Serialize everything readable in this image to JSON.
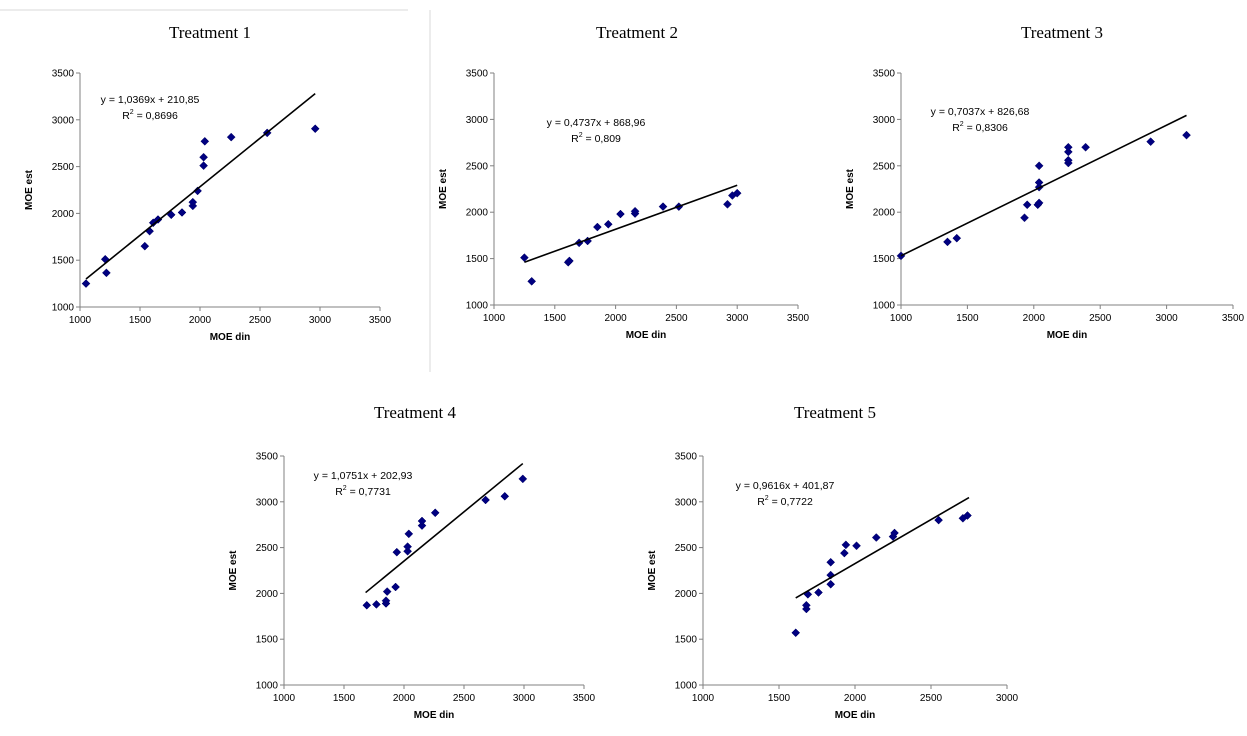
{
  "chart_data": [
    {
      "type": "scatter",
      "title": "Treatment 1",
      "xlabel": "MOE din",
      "ylabel": "MOE est",
      "xlim": [
        1000,
        3500
      ],
      "ylim": [
        1000,
        3500
      ],
      "xticks": [
        "1000",
        "1500",
        "2000",
        "2500",
        "3000",
        "3500"
      ],
      "yticks": [
        "1000",
        "1500",
        "2000",
        "2500",
        "3000",
        "3500"
      ],
      "equation": "y = 1,0369x + 210,85",
      "r2_label": "R",
      "r2_sup": "2",
      "r2_value": " = 0,8696",
      "trendline": {
        "slope": 1.0369,
        "intercept": 210.85,
        "x_range": [
          1050,
          2960
        ]
      },
      "points": [
        [
          1050,
          1250
        ],
        [
          1210,
          1510
        ],
        [
          1220,
          1365
        ],
        [
          1540,
          1650
        ],
        [
          1580,
          1810
        ],
        [
          1610,
          1900
        ],
        [
          1650,
          1935
        ],
        [
          1760,
          1985
        ],
        [
          1850,
          2010
        ],
        [
          1940,
          2080
        ],
        [
          1940,
          2120
        ],
        [
          1980,
          2240
        ],
        [
          2030,
          2510
        ],
        [
          2030,
          2600
        ],
        [
          2040,
          2770
        ],
        [
          2260,
          2815
        ],
        [
          2560,
          2860
        ],
        [
          2960,
          2905
        ]
      ],
      "grid": false
    },
    {
      "type": "scatter",
      "title": "Treatment 2",
      "xlabel": "MOE din",
      "ylabel": "MOE est",
      "xlim": [
        1000,
        3500
      ],
      "ylim": [
        1000,
        3500
      ],
      "xticks": [
        "1000",
        "1500",
        "2000",
        "2500",
        "3000",
        "3500"
      ],
      "yticks": [
        "1000",
        "1500",
        "2000",
        "2500",
        "3000",
        "3500"
      ],
      "equation": "y = 0,4737x + 868,96",
      "r2_label": "R",
      "r2_sup": "2",
      "r2_value": " = 0,809",
      "trendline": {
        "slope": 0.4737,
        "intercept": 868.96,
        "x_range": [
          1250,
          3000
        ]
      },
      "points": [
        [
          1250,
          1510
        ],
        [
          1310,
          1255
        ],
        [
          1610,
          1460
        ],
        [
          1620,
          1475
        ],
        [
          1700,
          1670
        ],
        [
          1770,
          1690
        ],
        [
          1850,
          1840
        ],
        [
          1940,
          1870
        ],
        [
          2040,
          1980
        ],
        [
          2160,
          1985
        ],
        [
          2160,
          2010
        ],
        [
          2390,
          2060
        ],
        [
          2520,
          2060
        ],
        [
          2920,
          2085
        ],
        [
          2960,
          2180
        ],
        [
          3000,
          2205
        ]
      ],
      "grid": false
    },
    {
      "type": "scatter",
      "title": "Treatment 3",
      "xlabel": "MOE din",
      "ylabel": "MOE est",
      "xlim": [
        1000,
        3500
      ],
      "ylim": [
        1000,
        3500
      ],
      "xticks": [
        "1000",
        "1500",
        "2000",
        "2500",
        "3000",
        "3500"
      ],
      "yticks": [
        "1000",
        "1500",
        "2000",
        "2500",
        "3000",
        "3500"
      ],
      "equation": "y = 0,7037x + 826,68",
      "r2_label": "R",
      "r2_sup": "2",
      "r2_value": " = 0,8306",
      "trendline": {
        "slope": 0.7037,
        "intercept": 826.68,
        "x_range": [
          1000,
          3150
        ]
      },
      "points": [
        [
          1000,
          1530
        ],
        [
          1350,
          1680
        ],
        [
          1420,
          1720
        ],
        [
          1930,
          1940
        ],
        [
          1950,
          2080
        ],
        [
          2030,
          2080
        ],
        [
          2040,
          2100
        ],
        [
          2040,
          2270
        ],
        [
          2040,
          2320
        ],
        [
          2040,
          2500
        ],
        [
          2260,
          2530
        ],
        [
          2260,
          2560
        ],
        [
          2260,
          2650
        ],
        [
          2260,
          2700
        ],
        [
          2390,
          2700
        ],
        [
          2880,
          2760
        ],
        [
          3150,
          2830
        ]
      ],
      "grid": false
    },
    {
      "type": "scatter",
      "title": "Treatment 4",
      "xlabel": "MOE din",
      "ylabel": "MOE est",
      "xlim": [
        1000,
        3500
      ],
      "ylim": [
        1000,
        3500
      ],
      "xticks": [
        "1000",
        "1500",
        "2000",
        "2500",
        "3000",
        "3500"
      ],
      "yticks": [
        "1000",
        "1500",
        "2000",
        "2500",
        "3000",
        "3500"
      ],
      "equation": "y = 1,0751x + 202,93",
      "r2_label": "R",
      "r2_sup": "2",
      "r2_value": " = 0,7731",
      "trendline": {
        "slope": 1.0751,
        "intercept": 202.93,
        "x_range": [
          1680,
          2990
        ]
      },
      "points": [
        [
          1690,
          1870
        ],
        [
          1770,
          1880
        ],
        [
          1850,
          1890
        ],
        [
          1850,
          1920
        ],
        [
          1860,
          2020
        ],
        [
          1930,
          2070
        ],
        [
          1940,
          2450
        ],
        [
          2030,
          2460
        ],
        [
          2030,
          2510
        ],
        [
          2040,
          2650
        ],
        [
          2150,
          2740
        ],
        [
          2150,
          2790
        ],
        [
          2260,
          2880
        ],
        [
          2680,
          3020
        ],
        [
          2840,
          3060
        ],
        [
          2990,
          3250
        ]
      ],
      "grid": false
    },
    {
      "type": "scatter",
      "title": "Treatment 5",
      "xlabel": "MOE din",
      "ylabel": "MOE est",
      "xlim": [
        1000,
        3000
      ],
      "ylim": [
        1000,
        3500
      ],
      "xticks": [
        "1000",
        "1500",
        "2000",
        "2500",
        "3000"
      ],
      "yticks": [
        "1000",
        "1500",
        "2000",
        "2500",
        "3000",
        "3500"
      ],
      "equation": "y = 0,9616x + 401,87",
      "r2_label": "R",
      "r2_sup": "2",
      "r2_value": " = 0,7722",
      "trendline": {
        "slope": 0.9616,
        "intercept": 401.87,
        "x_range": [
          1610,
          2750
        ]
      },
      "points": [
        [
          1610,
          1570
        ],
        [
          1680,
          1830
        ],
        [
          1680,
          1870
        ],
        [
          1690,
          1990
        ],
        [
          1760,
          2010
        ],
        [
          1840,
          2100
        ],
        [
          1840,
          2200
        ],
        [
          1840,
          2340
        ],
        [
          1930,
          2440
        ],
        [
          1940,
          2530
        ],
        [
          2010,
          2520
        ],
        [
          2140,
          2610
        ],
        [
          2250,
          2620
        ],
        [
          2260,
          2660
        ],
        [
          2550,
          2800
        ],
        [
          2710,
          2820
        ],
        [
          2740,
          2850
        ]
      ],
      "grid": false
    }
  ]
}
